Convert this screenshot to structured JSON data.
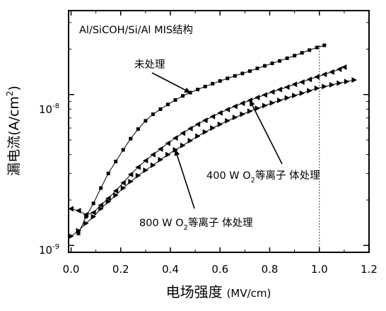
{
  "chart_data": {
    "type": "scatter",
    "title": "",
    "xlabel": "电场强度",
    "xlabel_unit": "(MV/cm)",
    "ylabel": "漏电流(A/cm",
    "ylabel_sup": "2",
    "ylabel_close": ")",
    "y_scale": "log",
    "xlim": [
      -0.01,
      1.2
    ],
    "ylim": [
      9e-10,
      3.6e-08
    ],
    "x_ticks": [
      0.0,
      0.2,
      0.4,
      0.6,
      0.8,
      1.0,
      1.2
    ],
    "x_tick_labels": [
      "0.0",
      "0.2",
      "0.4",
      "0.6",
      "0.8",
      "1.0",
      "1.2"
    ],
    "y_tick_labels": [
      {
        "value": 1e-09,
        "base": "10",
        "exp": "-9"
      },
      {
        "value": 1e-08,
        "base": "10",
        "exp": "-8"
      }
    ],
    "structure_label": "Al/SiCOH/Si/Al MIS结构",
    "reference_line_x": 1.0,
    "series": [
      {
        "label": "未处理",
        "marker": "square",
        "x": [
          0.0,
          0.03,
          0.06,
          0.09,
          0.12,
          0.15,
          0.18,
          0.21,
          0.24,
          0.27,
          0.3,
          0.33,
          0.36,
          0.39,
          0.42,
          0.45,
          0.48,
          0.51,
          0.54,
          0.57,
          0.6,
          0.63,
          0.66,
          0.69,
          0.72,
          0.75,
          0.78,
          0.81,
          0.84,
          0.87,
          0.9,
          0.93,
          0.96,
          0.99,
          1.02
        ],
        "y": [
          7.5e-10,
          1.2e-09,
          1.55e-09,
          1.9e-09,
          2.4e-09,
          3e-09,
          3.6e-09,
          4.3e-09,
          5.1e-09,
          5.9e-09,
          6.7e-09,
          7.4e-09,
          8e-09,
          8.6e-09,
          9.2e-09,
          9.8e-09,
          1.03e-08,
          1.08e-08,
          1.13e-08,
          1.18e-08,
          1.23e-08,
          1.28e-08,
          1.33e-08,
          1.38e-08,
          1.43e-08,
          1.49e-08,
          1.55e-08,
          1.61e-08,
          1.67e-08,
          1.74e-08,
          1.81e-08,
          1.89e-08,
          1.97e-08,
          2.05e-08,
          2.12e-08
        ]
      },
      {
        "label": "400 W O₂等离子 体处理",
        "label_parts": {
          "pre": "400 W O",
          "sub": "2",
          "post": "等离子  体处理"
        },
        "marker": "triangle-left",
        "x": [
          0.0,
          0.03,
          0.06,
          0.09,
          0.12,
          0.15,
          0.18,
          0.21,
          0.24,
          0.27,
          0.3,
          0.33,
          0.36,
          0.39,
          0.42,
          0.45,
          0.48,
          0.51,
          0.54,
          0.57,
          0.6,
          0.63,
          0.66,
          0.69,
          0.72,
          0.75,
          0.78,
          0.81,
          0.84,
          0.87,
          0.9,
          0.93,
          0.96,
          0.99,
          1.02,
          1.05,
          1.08,
          1.1
        ],
        "y": [
          1.75e-09,
          1.7e-09,
          1.6e-09,
          1.65e-09,
          1.85e-09,
          2.05e-09,
          2.3e-09,
          2.6e-09,
          2.95e-09,
          3.3e-09,
          3.65e-09,
          4e-09,
          4.35e-09,
          4.75e-09,
          5.15e-09,
          5.55e-09,
          5.95e-09,
          6.35e-09,
          6.75e-09,
          7.15e-09,
          7.55e-09,
          7.95e-09,
          8.35e-09,
          8.75e-09,
          9.15e-09,
          9.55e-09,
          9.95e-09,
          1.04e-08,
          1.08e-08,
          1.12e-08,
          1.17e-08,
          1.21e-08,
          1.26e-08,
          1.31e-08,
          1.36e-08,
          1.41e-08,
          1.47e-08,
          1.52e-08
        ]
      },
      {
        "label": "800 W O₂等离子 体处理",
        "label_parts": {
          "pre": "800 W O",
          "sub": "2",
          "post": "等离子  体处理"
        },
        "marker": "triangle-right",
        "x": [
          0.0,
          0.03,
          0.06,
          0.09,
          0.12,
          0.15,
          0.18,
          0.21,
          0.24,
          0.27,
          0.3,
          0.33,
          0.36,
          0.39,
          0.42,
          0.45,
          0.48,
          0.51,
          0.54,
          0.57,
          0.6,
          0.63,
          0.66,
          0.69,
          0.72,
          0.75,
          0.78,
          0.81,
          0.84,
          0.87,
          0.9,
          0.93,
          0.96,
          0.99,
          1.02,
          1.05,
          1.08,
          1.11,
          1.14
        ],
        "y": [
          1.15e-09,
          1.25e-09,
          1.4e-09,
          1.55e-09,
          1.75e-09,
          1.95e-09,
          2.15e-09,
          2.4e-09,
          2.65e-09,
          2.9e-09,
          3.15e-09,
          3.4e-09,
          3.7e-09,
          4e-09,
          4.3e-09,
          4.6e-09,
          4.95e-09,
          5.3e-09,
          5.65e-09,
          6e-09,
          6.35e-09,
          6.7e-09,
          7.05e-09,
          7.4e-09,
          7.75e-09,
          8.1e-09,
          8.45e-09,
          8.8e-09,
          9.15e-09,
          9.5e-09,
          9.85e-09,
          1.02e-08,
          1.06e-08,
          1.1e-08,
          1.13e-08,
          1.16e-08,
          1.19e-08,
          1.22e-08,
          1.25e-08
        ]
      }
    ],
    "annotation_arrow_targets": [
      {
        "series": 0,
        "x": 0.48,
        "y": 1.03e-08
      },
      {
        "series": 1,
        "x": 0.72,
        "y": 9.15e-09
      },
      {
        "series": 2,
        "x": 0.42,
        "y": 4.3e-09
      }
    ]
  }
}
